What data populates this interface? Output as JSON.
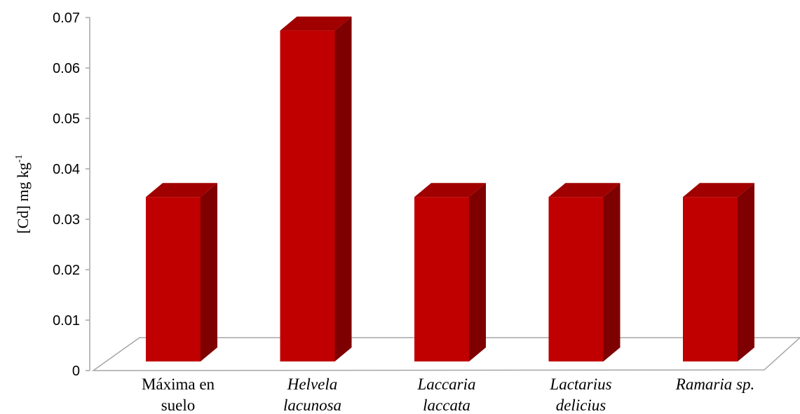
{
  "chart_data": {
    "type": "bar",
    "style": "3d-column",
    "ylabel": "[Cd] mg kg",
    "ylabel_superscript": "-1",
    "ylim": [
      0,
      0.07
    ],
    "yticks": [
      "0",
      "0.01",
      "0.02",
      "0.03",
      "0.04",
      "0.05",
      "0.06",
      "0.07"
    ],
    "grid": false,
    "categories": [
      {
        "lines": [
          "Máxima en",
          "suelo"
        ],
        "italic": false
      },
      {
        "lines": [
          "Helvela",
          "lacunosa"
        ],
        "italic": true
      },
      {
        "lines": [
          "Laccaria",
          "laccata"
        ],
        "italic": true
      },
      {
        "lines": [
          "Lactarius",
          "delicius"
        ],
        "italic": true
      },
      {
        "lines": [
          "Ramaria sp."
        ],
        "italic": true
      }
    ],
    "values": [
      0.034,
      0.067,
      0.034,
      0.034,
      0.034
    ],
    "colors": {
      "front": "#c00000",
      "side": "#7f0000",
      "top": "#a00000",
      "axis": "#a6a6a6"
    }
  }
}
